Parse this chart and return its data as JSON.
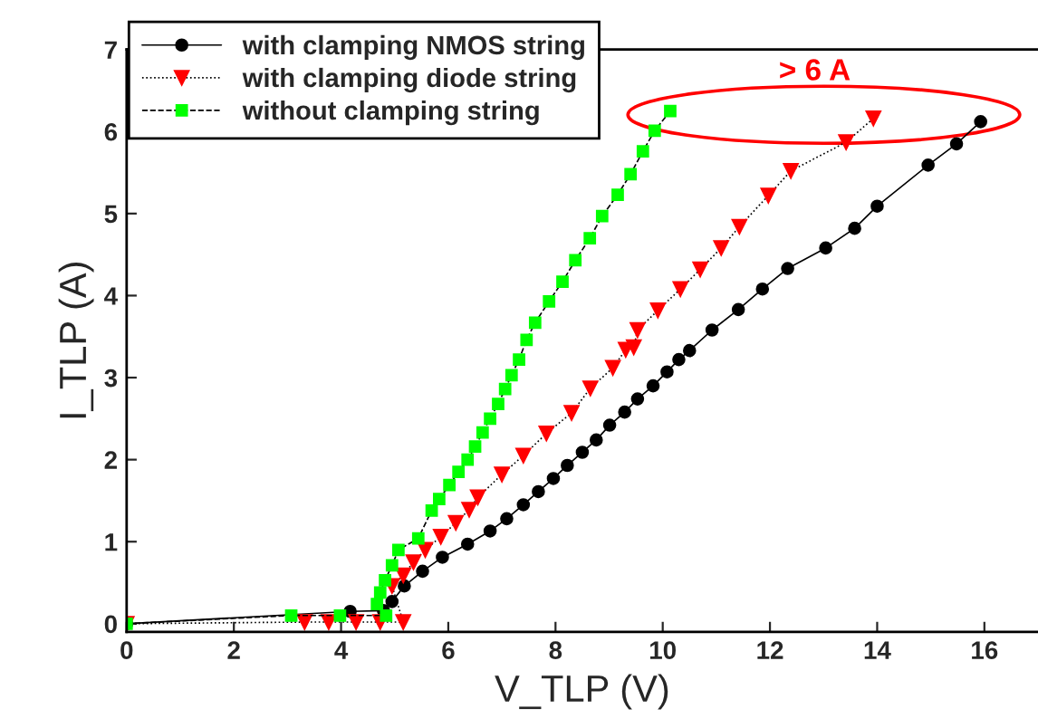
{
  "chart_data": {
    "type": "line",
    "xlabel": "V_TLP (V)",
    "ylabel": "I_TLP (A)",
    "xlim": [
      0,
      17
    ],
    "xticks": [
      0,
      2,
      4,
      6,
      8,
      10,
      12,
      14,
      16
    ],
    "ylim": [
      -0.1,
      7
    ],
    "yticks": [
      0,
      1,
      2,
      3,
      4,
      5,
      6,
      7
    ],
    "grid": false,
    "legend": "top left",
    "annotations": [
      "> 6 A"
    ],
    "series": [
      {
        "name": "with clamping NMOS string",
        "color": "#000000",
        "marker": "circle",
        "line_style": "solid",
        "x": [
          0,
          4.17,
          4.79,
          4.95,
          5.18,
          5.52,
          5.89,
          6.36,
          6.78,
          7.09,
          7.4,
          7.68,
          7.96,
          8.22,
          8.5,
          8.76,
          9.01,
          9.29,
          9.53,
          9.82,
          10.08,
          10.3,
          10.5,
          10.92,
          11.41,
          11.86,
          12.33,
          13.04,
          13.58,
          14.0,
          14.95,
          15.48,
          15.93
        ],
        "values": [
          0,
          0.15,
          0.16,
          0.27,
          0.46,
          0.64,
          0.81,
          0.97,
          1.13,
          1.28,
          1.45,
          1.61,
          1.77,
          1.93,
          2.09,
          2.24,
          2.42,
          2.58,
          2.74,
          2.9,
          3.07,
          3.22,
          3.33,
          3.58,
          3.83,
          4.08,
          4.33,
          4.58,
          4.82,
          5.09,
          5.59,
          5.85,
          6.12
        ]
      },
      {
        "name": "with clamping diode string",
        "color": "#ff0000",
        "marker": "triangle",
        "line_style": "dotted",
        "x": [
          0,
          3.32,
          3.77,
          4.28,
          4.73,
          5.16,
          4.95,
          5.16,
          5.35,
          5.57,
          5.86,
          6.14,
          6.39,
          6.55,
          7.0,
          7.4,
          7.83,
          8.3,
          8.65,
          9.07,
          9.31,
          9.46,
          9.53,
          9.91,
          10.33,
          10.7,
          11.09,
          11.43,
          11.97,
          12.39,
          13.42,
          13.93
        ],
        "values": [
          0,
          0.02,
          0.02,
          0.02,
          0.02,
          0.02,
          0.46,
          0.59,
          0.75,
          0.9,
          1.06,
          1.23,
          1.39,
          1.54,
          1.82,
          2.05,
          2.32,
          2.57,
          2.87,
          3.12,
          3.34,
          3.37,
          3.58,
          3.82,
          4.08,
          4.32,
          4.58,
          4.84,
          5.22,
          5.52,
          5.87,
          6.16
        ]
      },
      {
        "name": "without clamping string",
        "color": "#00ff00",
        "marker": "square",
        "line_style": "dashed",
        "x": [
          0,
          3.07,
          3.98,
          4.84,
          4.67,
          4.73,
          4.82,
          4.95,
          5.07,
          5.44,
          5.69,
          5.83,
          6.02,
          6.19,
          6.36,
          6.5,
          6.64,
          6.78,
          6.93,
          7.06,
          7.18,
          7.32,
          7.46,
          7.62,
          7.88,
          8.13,
          8.37,
          8.64,
          8.87,
          9.16,
          9.4,
          9.63,
          9.85,
          10.14
        ],
        "values": [
          0,
          0.1,
          0.1,
          0.1,
          0.24,
          0.38,
          0.53,
          0.71,
          0.9,
          1.04,
          1.38,
          1.52,
          1.69,
          1.85,
          2.0,
          2.16,
          2.33,
          2.5,
          2.68,
          2.86,
          3.03,
          3.22,
          3.46,
          3.67,
          3.93,
          4.17,
          4.43,
          4.7,
          4.97,
          5.23,
          5.48,
          5.76,
          6.01,
          6.25
        ]
      }
    ]
  }
}
